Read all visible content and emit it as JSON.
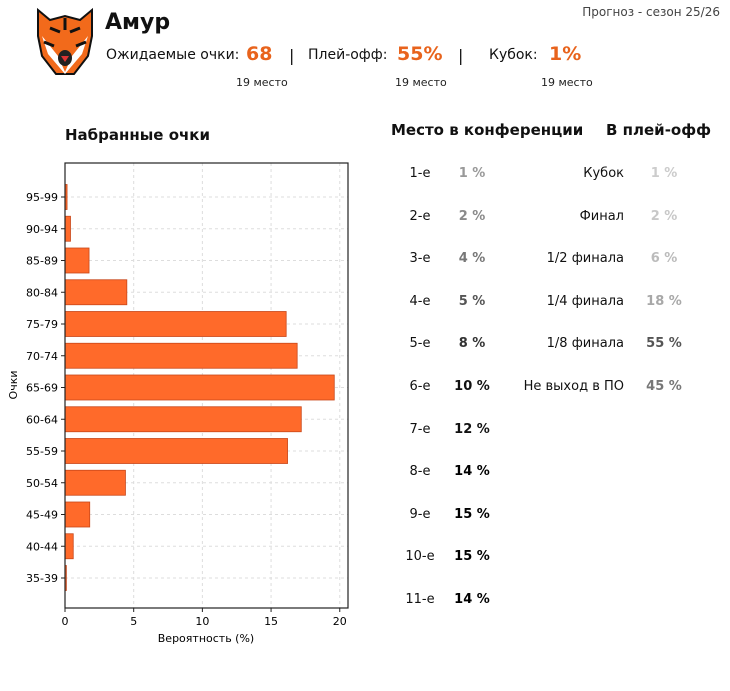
{
  "header": {
    "team": "Амур",
    "season": "Прогноз - сезон 25/26",
    "expected_label": "Ожидаемые очки:",
    "expected_value": "68",
    "expected_rank": "19 место",
    "playoff_label": "Плей-офф:",
    "playoff_value": "55%",
    "playoff_rank": "19 место",
    "cup_label": "Кубок:",
    "cup_value": "1%",
    "cup_rank": "19 место",
    "separator": "|",
    "accent": "#e8631c"
  },
  "chart_data": {
    "type": "bar",
    "orientation": "horizontal",
    "title": "Набранные очки",
    "xlabel": "Вероятность (%)",
    "ylabel": "Очки",
    "categories": [
      "95-99",
      "90-94",
      "85-89",
      "80-84",
      "75-79",
      "70-74",
      "65-69",
      "60-64",
      "55-59",
      "50-54",
      "45-49",
      "40-44",
      "35-39"
    ],
    "values": [
      0.15,
      0.4,
      1.75,
      4.5,
      16.1,
      16.9,
      19.6,
      17.2,
      16.2,
      4.4,
      1.8,
      0.6,
      0.1
    ],
    "xlim": [
      0,
      20.6
    ],
    "xticks": [
      "0",
      "5",
      "10",
      "15",
      "20"
    ],
    "grid": true,
    "bar_color": "#ff6a2a"
  },
  "conference": {
    "title": "Место в конференции",
    "rows": [
      {
        "place": "1-е",
        "pct": "1 %",
        "color": "#999999"
      },
      {
        "place": "2-е",
        "pct": "2 %",
        "color": "#8a8a8a"
      },
      {
        "place": "3-е",
        "pct": "4 %",
        "color": "#777777"
      },
      {
        "place": "4-е",
        "pct": "5 %",
        "color": "#555555"
      },
      {
        "place": "5-е",
        "pct": "8 %",
        "color": "#333333"
      },
      {
        "place": "6-е",
        "pct": "10 %",
        "color": "#111111"
      },
      {
        "place": "7-е",
        "pct": "12 %",
        "color": "#111111"
      },
      {
        "place": "8-е",
        "pct": "14 %",
        "color": "#000000"
      },
      {
        "place": "9-е",
        "pct": "15 %",
        "color": "#000000"
      },
      {
        "place": "10-е",
        "pct": "15 %",
        "color": "#000000"
      },
      {
        "place": "11-е",
        "pct": "14 %",
        "color": "#000000"
      }
    ]
  },
  "playoff": {
    "title": "В плей-офф",
    "rows": [
      {
        "stage": "Кубок",
        "pct": "1 %",
        "color": "#cccccc"
      },
      {
        "stage": "Финал",
        "pct": "2 %",
        "color": "#c8c8c8"
      },
      {
        "stage": "1/2 финала",
        "pct": "6 %",
        "color": "#bbbbbb"
      },
      {
        "stage": "1/4 финала",
        "pct": "18 %",
        "color": "#a8a8a8"
      },
      {
        "stage": "1/8 финала",
        "pct": "55 %",
        "color": "#555555"
      },
      {
        "stage": "Не выход в ПО",
        "pct": "45 %",
        "color": "#777777"
      }
    ]
  }
}
